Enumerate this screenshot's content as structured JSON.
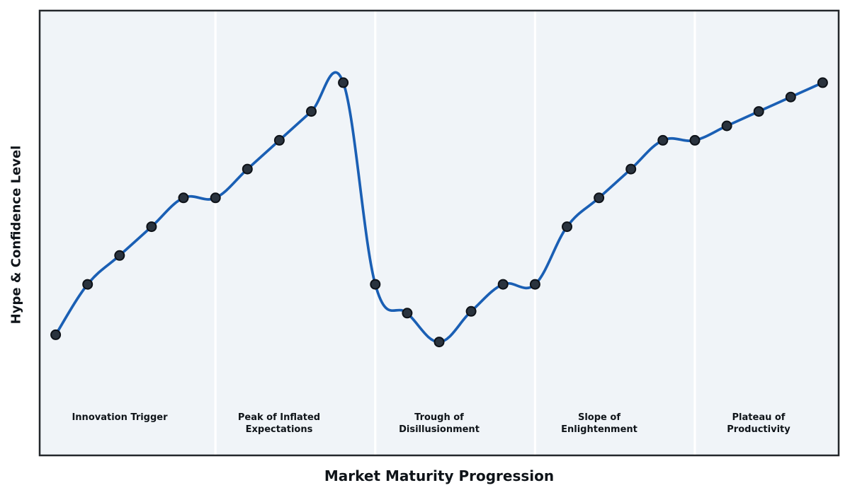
{
  "page": {
    "background": "#ffffff"
  },
  "chart_data": {
    "type": "line",
    "title": "",
    "xlabel": "Market Maturity Progression",
    "ylabel": "Hype & Confidence Level",
    "x": [
      1,
      2,
      3,
      4,
      5,
      6,
      7,
      8,
      9,
      10,
      11,
      12,
      13,
      14,
      15,
      16,
      17,
      18,
      19,
      20,
      21,
      22,
      23,
      24,
      25
    ],
    "values": [
      20,
      34,
      42,
      50,
      58,
      58,
      66,
      74,
      82,
      90,
      34,
      26,
      18,
      26.5,
      34,
      34,
      50,
      58,
      66,
      74,
      74,
      78,
      82,
      86,
      90
    ],
    "xlim": [
      0.5,
      25.5
    ],
    "ylim": [
      -13.5,
      110
    ],
    "grid": false,
    "legend": "none",
    "line_style": "smooth-spline",
    "marker": "circle",
    "x_ticks": "none",
    "y_ticks": "none",
    "colors": {
      "line": "#1a5fb4",
      "marker_fill": "#2a333e",
      "marker_edge": "#0d1117",
      "plot_background": "#f0f4f8",
      "phase_divider": "#ffffff",
      "spine": "#23272b",
      "label_text": "#0f1419"
    },
    "phase_dividers_x": [
      6,
      11,
      16,
      21
    ],
    "phases": [
      {
        "label": "Innovation Trigger",
        "center_x": 3
      },
      {
        "label": "Peak of Inflated\nExpectations",
        "center_x": 8
      },
      {
        "label": "Trough of\nDisillusionment",
        "center_x": 13
      },
      {
        "label": "Slope of\nEnlightenment",
        "center_x": 18
      },
      {
        "label": "Plateau of\nProductivity",
        "center_x": 23
      }
    ]
  }
}
